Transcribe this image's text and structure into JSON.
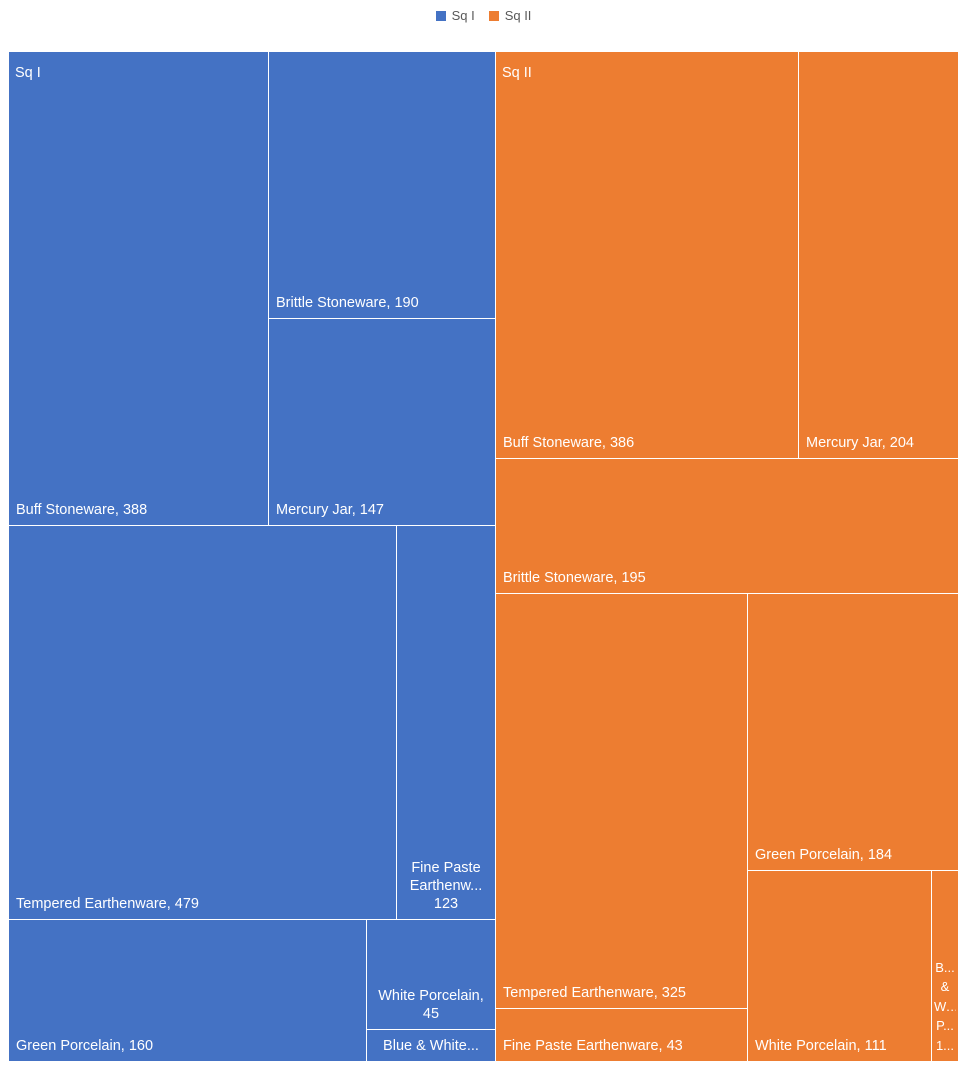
{
  "chart_data": {
    "type": "treemap",
    "legend": [
      "Sq I",
      "Sq II"
    ],
    "legend_position": "top",
    "series": [
      {
        "name": "Sq I",
        "color": "#4472C4",
        "items": [
          {
            "label": "Buff Stoneware, 388",
            "value": 388
          },
          {
            "label": "Brittle Stoneware, 190",
            "value": 190
          },
          {
            "label": "Mercury Jar, 147",
            "value": 147
          },
          {
            "label": "Tempered Earthenware, 479",
            "value": 479
          },
          {
            "label": "Fine Paste Earthenw... 123",
            "value": 123
          },
          {
            "label": "Green Porcelain, 160",
            "value": 160
          },
          {
            "label": "White Porcelain, 45",
            "value": 45
          },
          {
            "label": "Blue & White...",
            "value": 25
          }
        ]
      },
      {
        "name": "Sq II",
        "color": "#ED7D31",
        "items": [
          {
            "label": "Buff Stoneware, 386",
            "value": 386
          },
          {
            "label": "Mercury Jar, 204",
            "value": 204
          },
          {
            "label": "Brittle Stoneware, 195",
            "value": 195
          },
          {
            "label": "Tempered Earthenware, 325",
            "value": 325
          },
          {
            "label": "Fine Paste Earthenware, 43",
            "value": 43
          },
          {
            "label": "Green Porcelain, 184",
            "value": 184
          },
          {
            "label": "White Porcelain, 111",
            "value": 111
          },
          {
            "label": "B... & W... P... 1...",
            "value": 17
          }
        ]
      }
    ]
  }
}
